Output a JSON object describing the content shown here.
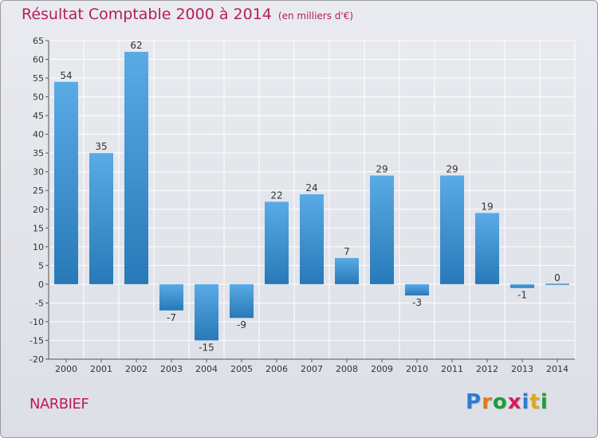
{
  "title": "Résultat Comptable 2000 à 2014",
  "title_unit": "(en milliers d'€)",
  "commune": "NARBIEF",
  "brand": {
    "letters": [
      "P",
      "r",
      "o",
      "x",
      "i",
      "t",
      "i"
    ],
    "colors": [
      "#2e7bd0",
      "#e07b1a",
      "#1f9b3d",
      "#d81b60",
      "#2e7bd0",
      "#e0a81a",
      "#1f9b3d"
    ]
  },
  "colors": {
    "title": "#b81c5a",
    "bar_top": "#5aaae6",
    "bar_bottom": "#2879b8",
    "grid": "#ffffff",
    "text": "#333333"
  },
  "chart_data": {
    "type": "bar",
    "title": "Résultat Comptable 2000 à 2014",
    "xlabel": "",
    "ylabel": "",
    "categories": [
      "2000",
      "2001",
      "2002",
      "2003",
      "2004",
      "2005",
      "2006",
      "2007",
      "2008",
      "2009",
      "2010",
      "2011",
      "2012",
      "2013",
      "2014"
    ],
    "values": [
      54,
      35,
      62,
      -7,
      -15,
      -9,
      22,
      24,
      7,
      29,
      -3,
      29,
      19,
      -1,
      0
    ],
    "ylim": [
      -20,
      65
    ],
    "yticks": [
      -20,
      -15,
      -10,
      -5,
      0,
      5,
      10,
      15,
      20,
      25,
      30,
      35,
      40,
      45,
      50,
      55,
      60,
      65
    ],
    "grid": true,
    "legend": "none"
  }
}
